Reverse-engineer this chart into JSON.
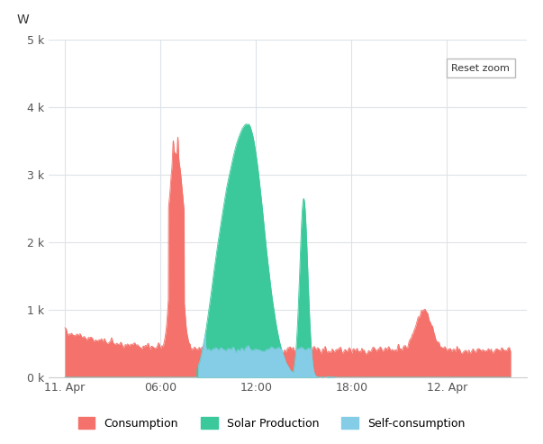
{
  "title": "",
  "ylabel": "W",
  "ylim": [
    0,
    5000
  ],
  "yticks": [
    0,
    1000,
    2000,
    3000,
    4000,
    5000
  ],
  "ytick_labels": [
    "0 k",
    "1 k",
    "2 k",
    "3 k",
    "4 k",
    "5 k"
  ],
  "xtick_labels": [
    "11. Apr",
    "06:00",
    "12:00",
    "18:00",
    "12. Apr"
  ],
  "xtick_positions": [
    0,
    6,
    12,
    18,
    24
  ],
  "xlim": [
    -1,
    29
  ],
  "consumption_color": "#f4726b",
  "solar_color": "#3bc99c",
  "self_color": "#85cde6",
  "background_color": "#ffffff",
  "grid_color": "#dde3e8",
  "legend_labels": [
    "Consumption",
    "Solar Production",
    "Self-consumption"
  ],
  "reset_zoom_text": "Reset zoom",
  "figsize": [
    6.03,
    4.93
  ],
  "dpi": 100
}
